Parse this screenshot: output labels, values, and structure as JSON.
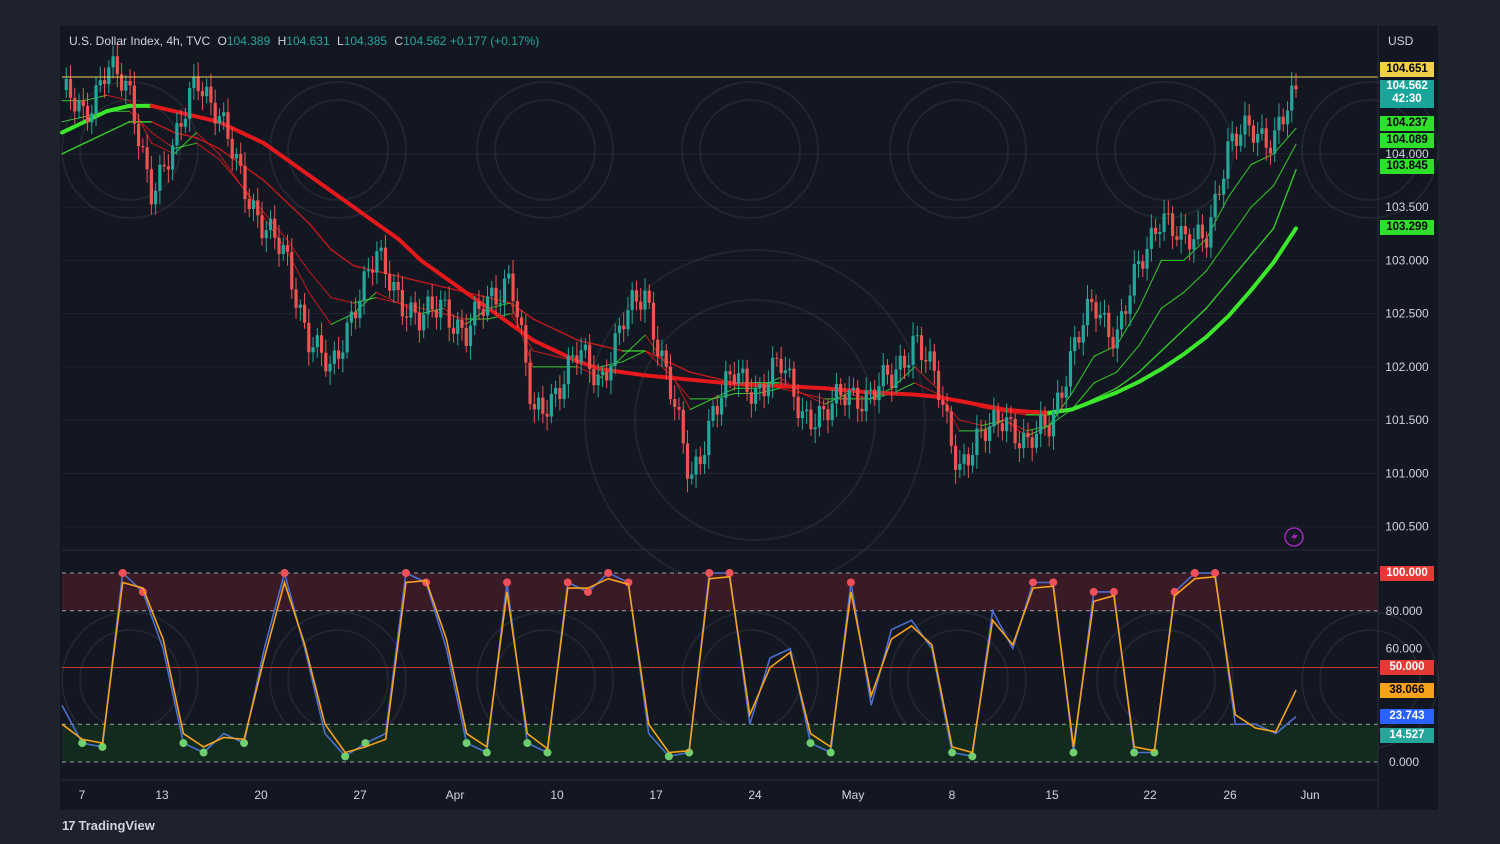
{
  "legend": {
    "symbol": "U.S. Dollar Index, 4h, TVC",
    "open_label": "O",
    "open": "104.389",
    "high_label": "H",
    "high": "104.631",
    "low_label": "L",
    "low": "104.385",
    "close_label": "C",
    "close": "104.562",
    "change": "+0.177 (+0.17%)"
  },
  "currency": "USD",
  "brand": {
    "logo": "17",
    "name": "TradingView"
  },
  "colors": {
    "background": "#131722",
    "up_candle": "#26a69a",
    "down_candle": "#ef5350",
    "bear_ma": "#e5191c",
    "bull_ma": "#3ce82c",
    "stoch_k": "#4a6fd1",
    "stoch_d": "#f7a21b",
    "overbought_fill": "#3a1a24",
    "oversold_fill": "#132a1e",
    "price_line": "#f0d058"
  },
  "chart_data": [
    {
      "type": "candlestick",
      "title": "U.S. Dollar Index, 4h, TVC",
      "y_axis_ticks": [
        "104.000",
        "103.500",
        "103.000",
        "102.500",
        "102.000",
        "101.500",
        "101.000",
        "100.500"
      ],
      "ylim": [
        100.3,
        105.2
      ],
      "x_axis_ticks": [
        "7",
        "13",
        "20",
        "27",
        "Apr",
        "10",
        "17",
        "24",
        "May",
        "8",
        "15",
        "22",
        "26",
        "Jun"
      ],
      "price_tags": [
        {
          "value": "104.651",
          "bg": "#f0d048",
          "fg": "#000000"
        },
        {
          "value": "104.562",
          "sub": "42:30",
          "bg": "#1aa59a",
          "fg": "#ffffff"
        },
        {
          "value": "104.237",
          "bg": "#2ee02a",
          "fg": "#000000"
        },
        {
          "value": "104.089",
          "bg": "#2ee02a",
          "fg": "#000000"
        },
        {
          "value": "103.845",
          "bg": "#2ee02a",
          "fg": "#000000"
        },
        {
          "value": "103.299",
          "bg": "#2ee02a",
          "fg": "#000000"
        }
      ],
      "close_path": [
        104.6,
        104.3,
        104.9,
        104.5,
        103.7,
        104.0,
        104.8,
        104.3,
        103.8,
        103.3,
        103.0,
        102.3,
        101.9,
        102.6,
        103.0,
        102.7,
        102.4,
        102.6,
        102.3,
        102.6,
        102.9,
        101.5,
        101.8,
        102.1,
        101.9,
        102.4,
        102.7,
        101.9,
        100.9,
        101.6,
        101.9,
        101.8,
        102.0,
        101.6,
        101.5,
        101.8,
        101.7,
        101.9,
        102.3,
        101.8,
        101.1,
        101.3,
        101.6,
        101.2,
        101.5,
        102.1,
        102.6,
        102.3,
        102.9,
        103.5,
        103.1,
        103.3,
        104.0,
        104.3,
        104.1,
        104.56
      ],
      "moving_averages": [
        {
          "name": "EMA fast",
          "values": [
            104.5,
            104.5,
            104.55,
            104.5,
            104.1,
            104.0,
            104.2,
            104.0,
            103.7,
            103.4,
            103.1,
            102.7,
            102.4,
            102.5,
            102.7,
            102.6,
            102.5,
            102.55,
            102.4,
            102.55,
            102.6,
            102.0,
            102.0,
            102.0,
            101.9,
            102.1,
            102.3,
            102.0,
            101.6,
            101.7,
            101.8,
            101.8,
            101.9,
            101.75,
            101.65,
            101.75,
            101.7,
            101.8,
            102.0,
            101.8,
            101.4,
            101.4,
            101.5,
            101.35,
            101.45,
            101.75,
            102.1,
            102.2,
            102.55,
            103.0,
            103.0,
            103.2,
            103.6,
            103.9,
            104.0,
            104.24
          ]
        },
        {
          "name": "EMA mid",
          "values": [
            104.3,
            104.35,
            104.4,
            104.4,
            104.2,
            104.05,
            104.1,
            103.95,
            103.7,
            103.45,
            103.2,
            102.9,
            102.65,
            102.6,
            102.65,
            102.6,
            102.55,
            102.5,
            102.45,
            102.45,
            102.5,
            102.15,
            102.1,
            102.05,
            102.0,
            102.05,
            102.15,
            101.95,
            101.7,
            101.7,
            101.75,
            101.75,
            101.8,
            101.75,
            101.7,
            101.7,
            101.7,
            101.75,
            101.85,
            101.75,
            101.5,
            101.45,
            101.5,
            101.4,
            101.45,
            101.6,
            101.85,
            101.95,
            102.2,
            102.55,
            102.7,
            102.9,
            103.2,
            103.5,
            103.7,
            104.09
          ]
        },
        {
          "name": "EMA slow",
          "values": [
            104.0,
            104.1,
            104.2,
            104.3,
            104.3,
            104.2,
            104.15,
            104.05,
            103.9,
            103.75,
            103.55,
            103.35,
            103.1,
            102.95,
            102.9,
            102.85,
            102.8,
            102.75,
            102.7,
            102.65,
            102.6,
            102.45,
            102.35,
            102.25,
            102.2,
            102.15,
            102.15,
            102.05,
            101.95,
            101.9,
            101.85,
            101.85,
            101.85,
            101.8,
            101.8,
            101.78,
            101.75,
            101.75,
            101.75,
            101.72,
            101.68,
            101.62,
            101.58,
            101.55,
            101.55,
            101.6,
            101.7,
            101.8,
            101.95,
            102.15,
            102.35,
            102.55,
            102.8,
            103.05,
            103.3,
            103.85
          ]
        },
        {
          "name": "EMA long",
          "values": [
            104.2,
            104.3,
            104.4,
            104.45,
            104.45,
            104.4,
            104.35,
            104.3,
            104.2,
            104.1,
            103.95,
            103.8,
            103.65,
            103.5,
            103.35,
            103.2,
            103.0,
            102.85,
            102.7,
            102.55,
            102.4,
            102.25,
            102.15,
            102.05,
            101.98,
            101.95,
            101.92,
            101.9,
            101.88,
            101.86,
            101.84,
            101.83,
            101.82,
            101.81,
            101.8,
            101.78,
            101.76,
            101.75,
            101.74,
            101.72,
            101.68,
            101.64,
            101.6,
            101.58,
            101.57,
            101.6,
            101.68,
            101.76,
            101.86,
            101.98,
            102.12,
            102.28,
            102.48,
            102.72,
            102.98,
            103.3
          ]
        }
      ]
    },
    {
      "type": "line",
      "title": "Stochastic",
      "y_axis_ticks": [
        "80.000",
        "60.000",
        "0.000"
      ],
      "ylim": [
        -3,
        103
      ],
      "levels": [
        100,
        80,
        50,
        20,
        0
      ],
      "value_tags": [
        {
          "value": "100.000",
          "bg": "#e53935",
          "fg": "#ffffff"
        },
        {
          "value": "50.000",
          "bg": "#e53935",
          "fg": "#ffffff"
        },
        {
          "value": "38.066",
          "bg": "#f7a21b",
          "fg": "#000000"
        },
        {
          "value": "23.743",
          "bg": "#2962ff",
          "fg": "#ffffff"
        },
        {
          "value": "14.527",
          "bg": "#26a69a",
          "fg": "#ffffff"
        }
      ],
      "series": [
        {
          "name": "%K",
          "values": [
            30,
            10,
            8,
            100,
            90,
            60,
            10,
            5,
            15,
            10,
            60,
            100,
            60,
            15,
            3,
            10,
            15,
            100,
            95,
            60,
            10,
            5,
            95,
            10,
            5,
            95,
            90,
            100,
            95,
            15,
            3,
            5,
            100,
            100,
            20,
            55,
            60,
            10,
            5,
            95,
            30,
            70,
            75,
            60,
            5,
            3,
            80,
            60,
            95,
            95,
            5,
            90,
            90,
            5,
            5,
            90,
            100,
            100,
            20,
            20,
            15,
            24
          ]
        },
        {
          "name": "%D",
          "values": [
            20,
            12,
            10,
            95,
            92,
            65,
            15,
            8,
            13,
            12,
            55,
            95,
            62,
            20,
            5,
            8,
            12,
            95,
            96,
            65,
            15,
            8,
            90,
            15,
            7,
            92,
            92,
            97,
            94,
            20,
            5,
            6,
            97,
            98,
            25,
            50,
            58,
            15,
            8,
            90,
            35,
            65,
            72,
            62,
            8,
            5,
            75,
            62,
            92,
            93,
            8,
            85,
            88,
            8,
            6,
            88,
            97,
            98,
            25,
            18,
            16,
            38
          ]
        }
      ]
    }
  ]
}
